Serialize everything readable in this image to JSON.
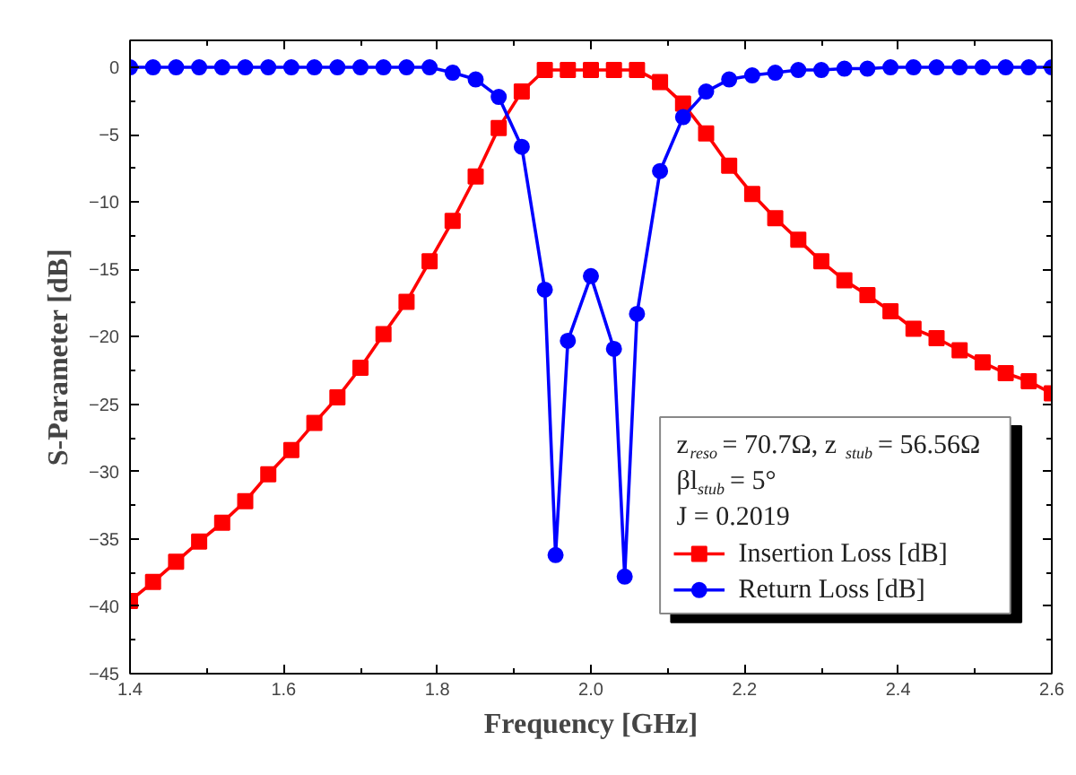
{
  "chart_data": {
    "type": "line",
    "xlabel": "Frequency [GHz]",
    "ylabel": "S-Parameter [dB]",
    "xlim": [
      1.4,
      2.6
    ],
    "xticks": [
      1.4,
      1.6,
      1.8,
      {
        "value": 2.0,
        "label": "2.0"
      },
      2.2,
      2.4,
      2.6
    ],
    "ylim": [
      -45,
      2
    ],
    "yticks": [
      -45,
      -40,
      -35,
      -30,
      -25,
      -20,
      -15,
      -10,
      -5,
      0
    ],
    "grid": false,
    "legend": "bottom right",
    "annotations": [
      "z$_{reso}$ = 70.7Ω, z$_{stub}$ = 56.56Ω",
      "βl$_{stub}$ = 5°",
      "J = 0.2019"
    ],
    "series": [
      {
        "name": "Insertion Loss [dB]",
        "color": "#ff0000",
        "marker": "square",
        "x": [
          1.4,
          1.43,
          1.46,
          1.49,
          1.52,
          1.55,
          1.58,
          1.61,
          1.64,
          1.67,
          1.7,
          1.73,
          1.76,
          1.79,
          1.82,
          1.85,
          1.88,
          1.91,
          1.94,
          1.97,
          2.0,
          2.03,
          2.06,
          2.09,
          2.12,
          2.15,
          2.18,
          2.21,
          2.24,
          2.27,
          2.3,
          2.33,
          2.36,
          2.39,
          2.42,
          2.45,
          2.48,
          2.51,
          2.54,
          2.57,
          2.6
        ],
        "values": [
          -39.6,
          -38.2,
          -36.7,
          -35.2,
          -33.8,
          -32.2,
          -30.2,
          -28.4,
          -26.4,
          -24.5,
          -22.3,
          -19.8,
          -17.4,
          -14.4,
          -11.4,
          -8.1,
          -4.5,
          -1.8,
          -0.2,
          -0.2,
          -0.2,
          -0.2,
          -0.2,
          -1.1,
          -2.7,
          -4.9,
          -7.3,
          -9.4,
          -11.2,
          -12.8,
          -14.4,
          -15.8,
          -16.9,
          -18.1,
          -19.4,
          -20.1,
          -21.0,
          -21.9,
          -22.7,
          -23.3,
          -24.2
        ]
      },
      {
        "name": "Return Loss [dB]",
        "color": "#0000ff",
        "marker": "circle",
        "x": [
          1.4,
          1.43,
          1.46,
          1.49,
          1.52,
          1.55,
          1.58,
          1.61,
          1.64,
          1.67,
          1.7,
          1.73,
          1.76,
          1.79,
          1.82,
          1.85,
          1.88,
          1.91,
          1.94,
          1.954,
          1.97,
          2.0,
          2.03,
          2.044,
          2.06,
          2.09,
          2.12,
          2.15,
          2.18,
          2.21,
          2.24,
          2.27,
          2.3,
          2.33,
          2.36,
          2.39,
          2.42,
          2.45,
          2.48,
          2.51,
          2.54,
          2.57,
          2.6
        ],
        "values": [
          0,
          0,
          0,
          0,
          0,
          0,
          0,
          0,
          0,
          0,
          0,
          0,
          0,
          0,
          -0.4,
          -0.9,
          -2.2,
          -5.9,
          -16.5,
          -36.2,
          -20.3,
          -15.5,
          -20.9,
          -37.8,
          -18.3,
          -7.7,
          -3.7,
          -1.8,
          -0.9,
          -0.6,
          -0.4,
          -0.2,
          -0.2,
          -0.1,
          -0.1,
          0,
          0,
          0,
          0,
          0,
          0,
          0,
          0
        ]
      }
    ]
  }
}
